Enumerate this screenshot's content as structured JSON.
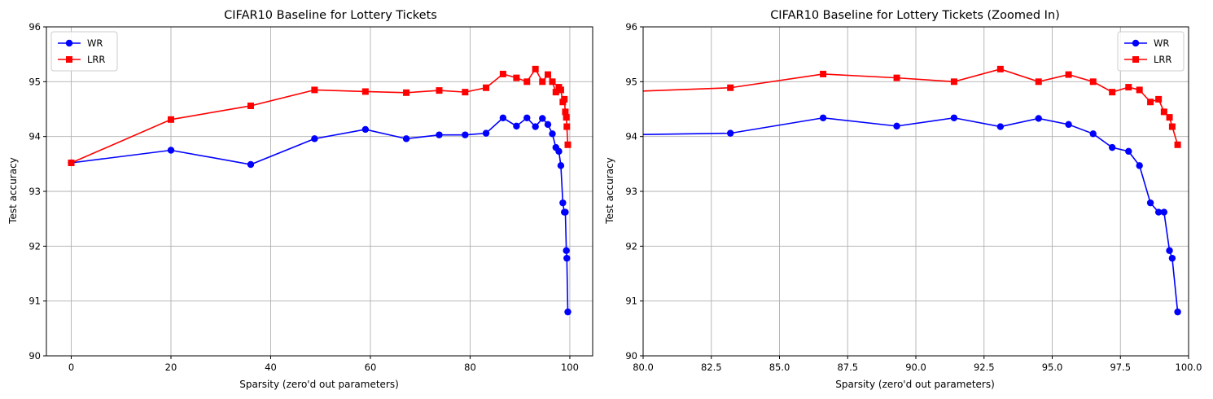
{
  "chart_data": [
    {
      "type": "line",
      "title": "CIFAR10 Baseline for Lottery Tickets",
      "xlabel": "Sparsity (zero'd out parameters)",
      "ylabel": "Test accuracy",
      "xlim": [
        -4.98,
        104.58
      ],
      "ylim": [
        90,
        96
      ],
      "xticks": [
        0,
        20,
        40,
        60,
        80,
        100
      ],
      "xtick_labels": [
        "0",
        "20",
        "40",
        "60",
        "80",
        "100"
      ],
      "yticks": [
        90,
        91,
        92,
        93,
        94,
        95,
        96
      ],
      "ytick_labels": [
        "90",
        "91",
        "92",
        "93",
        "94",
        "95",
        "96"
      ],
      "grid": true,
      "legend_position": "top-left",
      "series": [
        {
          "name": "WR",
          "color": "#0000ff",
          "marker": "circle",
          "x": [
            0,
            20,
            36,
            48.8,
            59.0,
            67.2,
            73.8,
            79.0,
            83.2,
            86.6,
            89.3,
            91.4,
            93.1,
            94.5,
            95.6,
            96.5,
            97.2,
            97.8,
            98.2,
            98.6,
            98.9,
            99.1,
            99.3,
            99.4,
            99.6
          ],
          "y": [
            93.52,
            93.75,
            93.49,
            93.96,
            94.13,
            93.96,
            94.03,
            94.03,
            94.06,
            94.34,
            94.19,
            94.34,
            94.18,
            94.33,
            94.22,
            94.05,
            93.8,
            93.73,
            93.47,
            92.79,
            92.62,
            92.62,
            91.92,
            91.78,
            90.8
          ]
        },
        {
          "name": "LRR",
          "color": "#ff0000",
          "marker": "square",
          "x": [
            0,
            20,
            36,
            48.8,
            59.0,
            67.2,
            73.8,
            79.0,
            83.2,
            86.6,
            89.3,
            91.4,
            93.1,
            94.5,
            95.6,
            96.5,
            97.2,
            97.8,
            98.2,
            98.6,
            98.9,
            99.1,
            99.3,
            99.4,
            99.6
          ],
          "y": [
            93.52,
            94.31,
            94.56,
            94.85,
            94.82,
            94.8,
            94.84,
            94.81,
            94.89,
            95.14,
            95.07,
            95.0,
            95.23,
            95.0,
            95.13,
            95.0,
            94.81,
            94.9,
            94.85,
            94.63,
            94.68,
            94.45,
            94.35,
            94.18,
            93.85
          ]
        }
      ]
    },
    {
      "type": "line",
      "title": "CIFAR10 Baseline for Lottery Tickets (Zoomed In)",
      "xlabel": "Sparsity (zero'd out parameters)",
      "ylabel": "Test accuracy",
      "xlim": [
        80,
        100
      ],
      "ylim": [
        90,
        96
      ],
      "xticks": [
        80,
        82.5,
        85,
        87.5,
        90,
        92.5,
        95,
        97.5,
        100
      ],
      "xtick_labels": [
        "80.0",
        "82.5",
        "85.0",
        "87.5",
        "90.0",
        "92.5",
        "95.0",
        "97.5",
        "100.0"
      ],
      "yticks": [
        90,
        91,
        92,
        93,
        94,
        95,
        96
      ],
      "ytick_labels": [
        "90",
        "91",
        "92",
        "93",
        "94",
        "95",
        "96"
      ],
      "grid": true,
      "legend_position": "top-right",
      "series": [
        {
          "name": "WR",
          "color": "#0000ff",
          "marker": "circle",
          "x": [
            79.0,
            83.2,
            86.6,
            89.3,
            91.4,
            93.1,
            94.5,
            95.6,
            96.5,
            97.2,
            97.8,
            98.2,
            98.6,
            98.9,
            99.1,
            99.3,
            99.4,
            99.6
          ],
          "y": [
            94.03,
            94.06,
            94.34,
            94.19,
            94.34,
            94.18,
            94.33,
            94.22,
            94.05,
            93.8,
            93.73,
            93.47,
            92.79,
            92.62,
            92.62,
            91.92,
            91.78,
            90.8
          ]
        },
        {
          "name": "LRR",
          "color": "#ff0000",
          "marker": "square",
          "x": [
            79.0,
            83.2,
            86.6,
            89.3,
            91.4,
            93.1,
            94.5,
            95.6,
            96.5,
            97.2,
            97.8,
            98.2,
            98.6,
            98.9,
            99.1,
            99.3,
            99.4,
            99.6
          ],
          "y": [
            94.81,
            94.89,
            95.14,
            95.07,
            95.0,
            95.23,
            95.0,
            95.13,
            95.0,
            94.81,
            94.9,
            94.85,
            94.63,
            94.68,
            94.45,
            94.35,
            94.18,
            93.85
          ]
        }
      ]
    }
  ]
}
